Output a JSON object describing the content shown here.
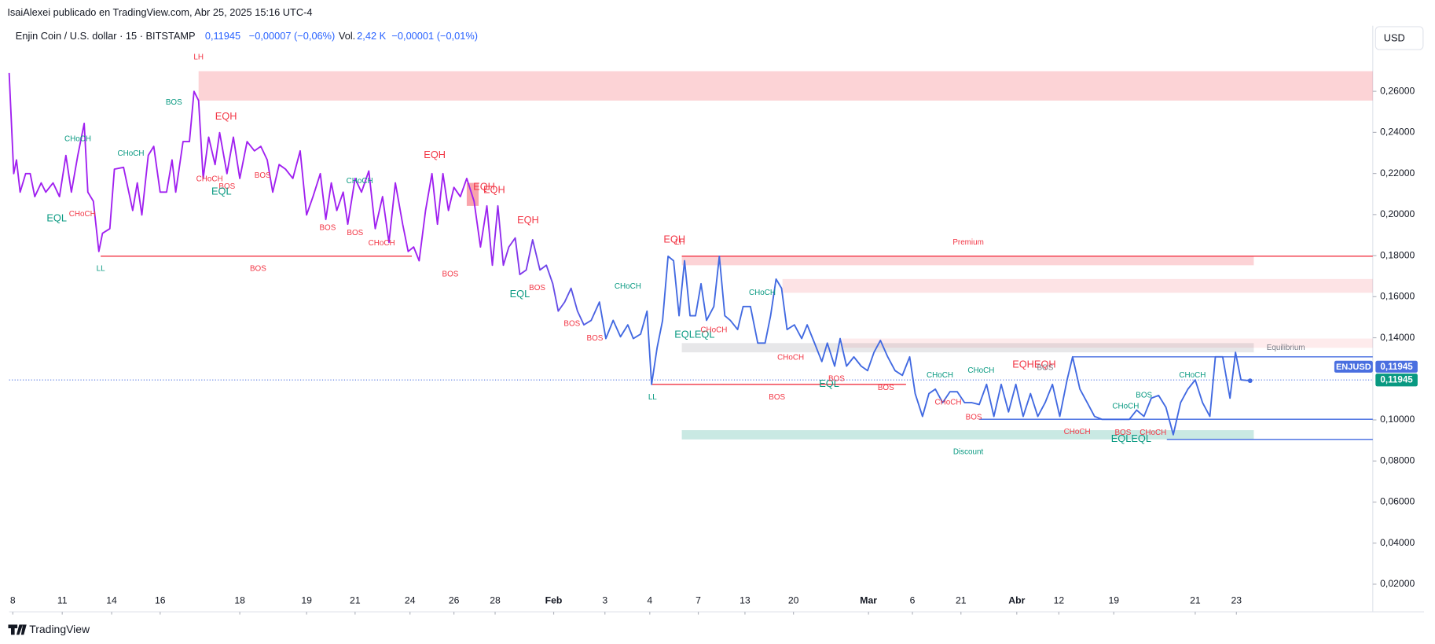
{
  "header": {
    "publisher": "IsaiAlexei publicado en TradingView.com, Abr 25, 2025 15:16 UTC-4",
    "symbol": "Enjin Coin / U.S. dollar · 15 · BITSTAMP",
    "price": "0,11945",
    "change": "−0,00007 (−0,06%)",
    "vol_label": "Vol.",
    "vol": "2,42 K",
    "vol_change": "−0,00001 (−0,01%)",
    "currency": "USD",
    "brand": "TradingView"
  },
  "chart_data": {
    "type": "line",
    "series": [
      {
        "color_start": "#a020f0",
        "color_end": "#4169e1",
        "x": [
          10,
          15,
          18,
          22,
          28,
          33,
          38,
          45,
          50,
          58,
          65,
          72,
          78,
          85,
          92,
          96,
          102,
          108,
          112,
          120,
          125,
          135,
          145,
          150,
          155,
          162,
          168,
          175,
          182,
          188,
          192,
          200,
          207,
          212,
          217,
          222,
          228,
          235,
          240,
          248,
          255,
          262,
          270,
          278,
          285,
          292,
          298,
          305,
          312,
          320,
          328,
          335,
          342,
          350,
          356,
          362,
          368,
          375,
          380,
          388,
          395,
          403,
          410,
          418,
          425,
          432,
          440,
          446,
          452,
          458,
          465,
          472,
          478,
          484,
          490,
          496,
          503,
          510,
          518,
          525,
          532,
          538,
          544,
          550,
          556,
          563,
          568,
          575,
          582,
          590,
          597,
          604,
          610,
          617,
          624,
          631,
          638,
          646,
          655,
          662,
          670,
          678,
          686,
          692,
          700,
          707,
          712,
          718,
          724,
          730,
          736,
          742,
          748,
          754,
          760,
          766,
          772,
          780,
          786,
          792,
          798,
          806,
          812,
          820,
          828,
          836,
          842,
          848,
          854,
          860,
          868,
          876,
          882,
          890,
          898,
          904,
          912,
          918,
          925,
          933,
          941,
          948,
          955,
          962,
          970,
          978,
          986,
          994,
          1000,
          1008,
          1015,
          1022,
          1030,
          1038,
          1046,
          1054,
          1062,
          1070,
          1078,
          1086,
          1094,
          1102,
          1110,
          1118,
          1126,
          1134,
          1142,
          1150,
          1158,
          1166,
          1172,
          1180,
          1188,
          1196,
          1204,
          1214,
          1224,
          1234,
          1242,
          1250,
          1258,
          1266,
          1274,
          1282,
          1290,
          1298,
          1306,
          1314,
          1322,
          1328,
          1336,
          1344,
          1350,
          1356,
          1366
        ],
        "values": [
          0.2689,
          0.2199,
          0.2266,
          0.2109,
          0.2199,
          0.2199,
          0.2087,
          0.2154,
          0.2109,
          0.2154,
          0.2087,
          0.2288,
          0.2109,
          0.2288,
          0.2444,
          0.2109,
          0.2065,
          0.182,
          0.1909,
          0.1931,
          0.2221,
          0.223,
          0.202,
          0.2154,
          0.1998,
          0.2288,
          0.2332,
          0.2109,
          0.2109,
          0.2266,
          0.2109,
          0.2355,
          0.2355,
          0.26,
          0.2555,
          0.2176,
          0.2377,
          0.2243,
          0.2399,
          0.2199,
          0.2377,
          0.2176,
          0.2355,
          0.231,
          0.2332,
          0.2266,
          0.2109,
          0.2243,
          0.2221,
          0.2176,
          0.231,
          0.1998,
          0.2087,
          0.2199,
          0.1976,
          0.2154,
          0.202,
          0.2109,
          0.1953,
          0.2176,
          0.2109,
          0.2212,
          0.1931,
          0.2087,
          0.1864,
          0.2154,
          0.1953,
          0.182,
          0.1842,
          0.1775,
          0.202,
          0.2199,
          0.1953,
          0.2199,
          0.202,
          0.2132,
          0.2087,
          0.2176,
          0.2065,
          0.1842,
          0.2042,
          0.1753,
          0.2042,
          0.1753,
          0.1842,
          0.1886,
          0.1708,
          0.173,
          0.1877,
          0.173,
          0.1753,
          0.1663,
          0.153,
          0.1574,
          0.1641,
          0.153,
          0.1463,
          0.1485,
          0.1574,
          0.1396,
          0.1485,
          0.1405,
          0.1463,
          0.1396,
          0.1418,
          0.153,
          0.1173,
          0.1351,
          0.1485,
          0.1797,
          0.1775,
          0.1507,
          0.1775,
          0.1507,
          0.1507,
          0.1663,
          0.1485,
          0.1552,
          0.1797,
          0.1507,
          0.1485,
          0.144,
          0.1552,
          0.1552,
          0.1374,
          0.1374,
          0.1507,
          0.1686,
          0.1641,
          0.144,
          0.1463,
          0.1396,
          0.1463,
          0.1374,
          0.1284,
          0.1374,
          0.1262,
          0.1396,
          0.1262,
          0.1307,
          0.1262,
          0.124,
          0.1329,
          0.1387,
          0.1307,
          0.124,
          0.1217,
          0.1307,
          0.1128,
          0.1017,
          0.1128,
          0.115,
          0.1084,
          0.1137,
          0.1137,
          0.1084,
          0.1084,
          0.1075,
          0.1173,
          0.1017,
          0.1173,
          0.1039,
          0.1173,
          0.1017,
          0.1128,
          0.1017,
          0.1084,
          0.1173,
          0.1017,
          0.1195,
          0.1307,
          0.115,
          0.1084,
          0.1017,
          0.1003,
          0.1003,
          0.1003,
          0.1003,
          0.1048,
          0.1017,
          0.1106,
          0.1119,
          0.1061,
          0.0928,
          0.1084,
          0.115,
          0.1195,
          0.1084,
          0.1017,
          0.1307,
          0.1307,
          0.1106,
          0.1329,
          0.1195,
          0.1191
        ]
      }
    ],
    "xlim": [
      10,
      1500
    ],
    "ylim": [
      0.007,
      0.283
    ],
    "xticks": [
      {
        "value": 14,
        "label": "8"
      },
      {
        "value": 68,
        "label": "11"
      },
      {
        "value": 122,
        "label": "14"
      },
      {
        "value": 175,
        "label": "16"
      },
      {
        "value": 262,
        "label": "18"
      },
      {
        "value": 335,
        "label": "19"
      },
      {
        "value": 388,
        "label": "21"
      },
      {
        "value": 448,
        "label": "24"
      },
      {
        "value": 496,
        "label": "26"
      },
      {
        "value": 541,
        "label": "28"
      },
      {
        "value": 605,
        "label": "Feb"
      },
      {
        "value": 661,
        "label": "3"
      },
      {
        "value": 710,
        "label": "4"
      },
      {
        "value": 763,
        "label": "7"
      },
      {
        "value": 814,
        "label": "13"
      },
      {
        "value": 867,
        "label": "20"
      },
      {
        "value": 949,
        "label": "Mar"
      },
      {
        "value": 997,
        "label": "6"
      },
      {
        "value": 1050,
        "label": "21"
      },
      {
        "value": 1111,
        "label": "Abr"
      },
      {
        "value": 1157,
        "label": "12"
      },
      {
        "value": 1217,
        "label": "19"
      },
      {
        "value": 1306,
        "label": "21"
      },
      {
        "value": 1351,
        "label": "23"
      }
    ],
    "yticks": [
      {
        "value": 0.26,
        "label": "0,26000"
      },
      {
        "value": 0.24,
        "label": "0,24000"
      },
      {
        "value": 0.22,
        "label": "0,22000"
      },
      {
        "value": 0.2,
        "label": "0,20000"
      },
      {
        "value": 0.18,
        "label": "0,18000"
      },
      {
        "value": 0.16,
        "label": "0,16000"
      },
      {
        "value": 0.14,
        "label": "0,14000"
      },
      {
        "value": 0.1,
        "label": "0,10000"
      },
      {
        "value": 0.08,
        "label": "0,08000"
      },
      {
        "value": 0.06,
        "label": "0,06000"
      },
      {
        "value": 0.04,
        "label": "0,04000"
      },
      {
        "value": 0.02,
        "label": "0,02000"
      }
    ],
    "last_price": {
      "value": 0.11945,
      "symbol": "ENJUSD",
      "label": "0,11945",
      "color": "#4a6fe0",
      "label2": "0,11945",
      "color2": "#089981"
    },
    "zones": [
      {
        "x": [
          217,
          1500
        ],
        "y": [
          0.2555,
          0.2698
        ],
        "color": "rgba(242,54,69,0.22)"
      },
      {
        "x": [
          510,
          523
        ],
        "y": [
          0.2042,
          0.2154
        ],
        "color": "rgba(242,54,69,0.45)"
      },
      {
        "x": [
          745,
          1370
        ],
        "y": [
          0.1753,
          0.1797
        ],
        "color": "rgba(242,54,69,0.22)"
      },
      {
        "x": [
          855,
          1500
        ],
        "y": [
          0.1619,
          0.1686
        ],
        "color": "rgba(242,54,69,0.14)"
      },
      {
        "x": [
          920,
          1500
        ],
        "y": [
          0.1351,
          0.1396
        ],
        "color": "rgba(242,54,69,0.10)"
      },
      {
        "x": [
          745,
          1370
        ],
        "y": [
          0.1329,
          0.1374
        ],
        "color": "rgba(120,123,134,0.18)"
      },
      {
        "x": [
          745,
          1370
        ],
        "y": [
          0.0905,
          0.095
        ],
        "color": "rgba(8,153,129,0.22)"
      }
    ],
    "levels": [
      {
        "x": [
          110,
          450
        ],
        "y": 0.1797,
        "color": "#f23645"
      },
      {
        "x": [
          745,
          1500
        ],
        "y": 0.1797,
        "color": "#f23645"
      },
      {
        "x": [
          712,
          990
        ],
        "y": 0.1173,
        "color": "#f23645"
      },
      {
        "x": [
          1172,
          1500
        ],
        "y": 0.1307,
        "color": "#4169e1"
      },
      {
        "x": [
          1070,
          1500
        ],
        "y": 0.1003,
        "color": "#4169e1"
      },
      {
        "x": [
          1275,
          1500
        ],
        "y": 0.0905,
        "color": "#4169e1"
      }
    ],
    "annotations": [
      {
        "text": "LH",
        "x": 217,
        "y": 0.2765,
        "color": "#f23645"
      },
      {
        "text": "EQH",
        "x": 247,
        "y": 0.2475,
        "color": "#f23645"
      },
      {
        "text": "BOS",
        "x": 190,
        "y": 0.2546,
        "color": "#089981"
      },
      {
        "text": "CHoCH",
        "x": 85,
        "y": 0.2368,
        "color": "#089981"
      },
      {
        "text": "CHoCH",
        "x": 143,
        "y": 0.2297,
        "color": "#089981"
      },
      {
        "text": "EQL",
        "x": 62,
        "y": 0.198,
        "color": "#089981"
      },
      {
        "text": "CHoCH",
        "x": 90,
        "y": 0.2002,
        "color": "#f23645"
      },
      {
        "text": "CHoCH",
        "x": 229,
        "y": 0.2172,
        "color": "#f23645"
      },
      {
        "text": "BOS",
        "x": 248,
        "y": 0.2136,
        "color": "#f23645"
      },
      {
        "text": "EQL",
        "x": 242,
        "y": 0.2109,
        "color": "#089981"
      },
      {
        "text": "BOS",
        "x": 287,
        "y": 0.219,
        "color": "#f23645"
      },
      {
        "text": "CHoCH",
        "x": 393,
        "y": 0.2163,
        "color": "#089981"
      },
      {
        "text": "BOS",
        "x": 358,
        "y": 0.1935,
        "color": "#f23645"
      },
      {
        "text": "BOS",
        "x": 388,
        "y": 0.1909,
        "color": "#f23645"
      },
      {
        "text": "CHoCH",
        "x": 417,
        "y": 0.186,
        "color": "#f23645"
      },
      {
        "text": "EQH",
        "x": 475,
        "y": 0.2288,
        "color": "#f23645"
      },
      {
        "text": "EQH",
        "x": 529,
        "y": 0.2132,
        "color": "#f23645"
      },
      {
        "text": "EQH",
        "x": 540,
        "y": 0.2118,
        "color": "#f23645"
      },
      {
        "text": "EQH",
        "x": 577,
        "y": 0.1971,
        "color": "#f23645"
      },
      {
        "text": "EQL",
        "x": 568,
        "y": 0.161,
        "color": "#089981"
      },
      {
        "text": "BOS",
        "x": 587,
        "y": 0.1641,
        "color": "#f23645"
      },
      {
        "text": "BOS",
        "x": 492,
        "y": 0.1708,
        "color": "#f23645"
      },
      {
        "text": "LL",
        "x": 110,
        "y": 0.1735,
        "color": "#089981"
      },
      {
        "text": "BOS",
        "x": 282,
        "y": 0.1735,
        "color": "#f23645"
      },
      {
        "text": "BOS",
        "x": 625,
        "y": 0.1467,
        "color": "#f23645"
      },
      {
        "text": "BOS",
        "x": 650,
        "y": 0.1396,
        "color": "#f23645"
      },
      {
        "text": "CHoCH",
        "x": 686,
        "y": 0.165,
        "color": "#089981"
      },
      {
        "text": "EQH",
        "x": 737,
        "y": 0.1877,
        "color": "#f23645"
      },
      {
        "text": "LH",
        "x": 743,
        "y": 0.1864,
        "color": "#f23645"
      },
      {
        "text": "CHoCH",
        "x": 833,
        "y": 0.1619,
        "color": "#089981"
      },
      {
        "text": "EQLEQL",
        "x": 759,
        "y": 0.1414,
        "color": "#089981"
      },
      {
        "text": "CHoCH",
        "x": 780,
        "y": 0.1436,
        "color": "#f23645"
      },
      {
        "text": "CHoCH",
        "x": 864,
        "y": 0.1302,
        "color": "#f23645"
      },
      {
        "text": "LL",
        "x": 713,
        "y": 0.111,
        "color": "#089981"
      },
      {
        "text": "BOS",
        "x": 849,
        "y": 0.111,
        "color": "#f23645"
      },
      {
        "text": "EQL",
        "x": 906,
        "y": 0.1173,
        "color": "#089981"
      },
      {
        "text": "BOS",
        "x": 914,
        "y": 0.12,
        "color": "#f23645"
      },
      {
        "text": "BOS",
        "x": 968,
        "y": 0.1155,
        "color": "#f23645"
      },
      {
        "text": "Premium",
        "x": 1058,
        "y": 0.1864,
        "color": "#f23645"
      },
      {
        "text": "Equilibrium",
        "x": 1405,
        "y": 0.1351,
        "color": "#787b86"
      },
      {
        "text": "Discount",
        "x": 1058,
        "y": 0.0843,
        "color": "#089981"
      },
      {
        "text": "CHoCH",
        "x": 1027,
        "y": 0.1217,
        "color": "#089981"
      },
      {
        "text": "CHoCH",
        "x": 1072,
        "y": 0.124,
        "color": "#089981"
      },
      {
        "text": "CHoCH",
        "x": 1036,
        "y": 0.1084,
        "color": "#f23645"
      },
      {
        "text": "BOS",
        "x": 1064,
        "y": 0.1012,
        "color": "#f23645"
      },
      {
        "text": "EQHEQH",
        "x": 1130,
        "y": 0.1267,
        "color": "#f23645"
      },
      {
        "text": "BOS",
        "x": 1142,
        "y": 0.1253,
        "color": "#787b86"
      },
      {
        "text": "CHoCH",
        "x": 1177,
        "y": 0.0941,
        "color": "#f23645"
      },
      {
        "text": "BOS",
        "x": 1227,
        "y": 0.0937,
        "color": "#f23645"
      },
      {
        "text": "CHoCH",
        "x": 1260,
        "y": 0.0937,
        "color": "#f23645"
      },
      {
        "text": "EQLEQL",
        "x": 1236,
        "y": 0.0905,
        "color": "#089981"
      },
      {
        "text": "CHoCH",
        "x": 1230,
        "y": 0.1066,
        "color": "#089981"
      },
      {
        "text": "BOS",
        "x": 1250,
        "y": 0.1119,
        "color": "#089981"
      },
      {
        "text": "CHoCH",
        "x": 1303,
        "y": 0.1217,
        "color": "#089981"
      }
    ]
  }
}
